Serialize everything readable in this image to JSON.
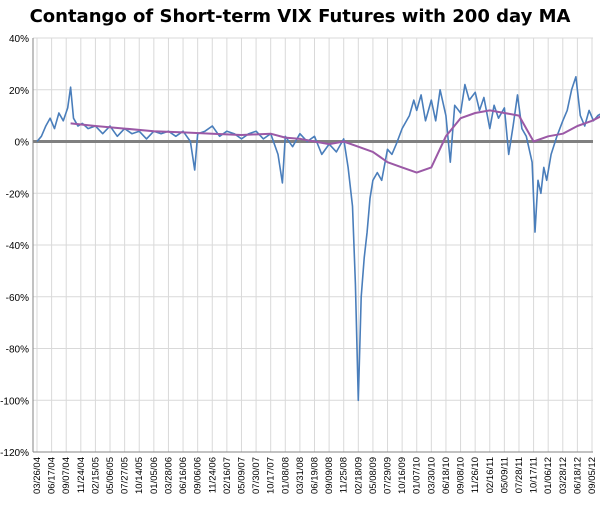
{
  "chart_data": {
    "type": "line",
    "title": "Contango of  Short-term VIX Futures with 200 day MA",
    "xlabel": "",
    "ylabel": "",
    "ylim": [
      -120,
      40
    ],
    "y_ticks": [
      40,
      20,
      0,
      -20,
      -40,
      -60,
      -80,
      -100,
      -120
    ],
    "y_tick_labels": [
      "40%",
      "20%",
      "0%",
      "-20%",
      "-40%",
      "-60%",
      "-80%",
      "-100%",
      "-120%"
    ],
    "x_tick_labels": [
      "03/26/04",
      "06/17/04",
      "09/07/04",
      "11/24/04",
      "02/15/05",
      "05/06/05",
      "07/27/05",
      "10/14/05",
      "01/05/06",
      "03/28/06",
      "06/16/06",
      "09/06/06",
      "11/24/06",
      "02/16/07",
      "05/09/07",
      "07/30/07",
      "10/17/07",
      "01/08/08",
      "03/31/08",
      "06/19/08",
      "09/09/08",
      "11/25/08",
      "02/18/09",
      "05/08/09",
      "07/29/09",
      "10/16/09",
      "01/07/10",
      "03/30/10",
      "06/18/10",
      "09/08/10",
      "11/26/10",
      "02/16/11",
      "05/09/11",
      "07/28/11",
      "10/17/11",
      "01/06/12",
      "03/28/12",
      "06/18/12",
      "09/05/12"
    ],
    "grid": true,
    "zero_line": true,
    "colors": {
      "contango": "#4a7ebb",
      "ma": "#9b59a6",
      "zero": "#808080",
      "grid": "#d9d9d9"
    },
    "series": [
      {
        "name": "Contango",
        "key": "contango",
        "points": [
          [
            0,
            0
          ],
          [
            0.3,
            2
          ],
          [
            0.6,
            6
          ],
          [
            0.9,
            9
          ],
          [
            1.2,
            5
          ],
          [
            1.5,
            11
          ],
          [
            1.8,
            8
          ],
          [
            2.1,
            13
          ],
          [
            2.3,
            21
          ],
          [
            2.5,
            9
          ],
          [
            2.8,
            6
          ],
          [
            3.1,
            7
          ],
          [
            3.5,
            5
          ],
          [
            4,
            6
          ],
          [
            4.5,
            3
          ],
          [
            5,
            6
          ],
          [
            5.5,
            2
          ],
          [
            6,
            5
          ],
          [
            6.5,
            3
          ],
          [
            7,
            4
          ],
          [
            7.5,
            1
          ],
          [
            8,
            4
          ],
          [
            8.5,
            3
          ],
          [
            9,
            4
          ],
          [
            9.5,
            2
          ],
          [
            10,
            4
          ],
          [
            10.5,
            0
          ],
          [
            10.8,
            -11
          ],
          [
            11,
            3
          ],
          [
            11.5,
            4
          ],
          [
            12,
            6
          ],
          [
            12.5,
            2
          ],
          [
            13,
            4
          ],
          [
            13.5,
            3
          ],
          [
            14,
            1
          ],
          [
            14.5,
            3
          ],
          [
            15,
            4
          ],
          [
            15.5,
            1
          ],
          [
            16,
            3
          ],
          [
            16.5,
            -5
          ],
          [
            16.8,
            -16
          ],
          [
            17,
            2
          ],
          [
            17.5,
            -2
          ],
          [
            18,
            3
          ],
          [
            18.5,
            0
          ],
          [
            19,
            2
          ],
          [
            19.5,
            -5
          ],
          [
            20,
            -1
          ],
          [
            20.5,
            -4
          ],
          [
            21,
            1
          ],
          [
            21.3,
            -10
          ],
          [
            21.6,
            -25
          ],
          [
            21.8,
            -55
          ],
          [
            22,
            -100
          ],
          [
            22.2,
            -60
          ],
          [
            22.4,
            -45
          ],
          [
            22.6,
            -35
          ],
          [
            22.8,
            -22
          ],
          [
            23,
            -15
          ],
          [
            23.3,
            -12
          ],
          [
            23.6,
            -15
          ],
          [
            24,
            -3
          ],
          [
            24.3,
            -5
          ],
          [
            24.6,
            -1
          ],
          [
            25,
            5
          ],
          [
            25.5,
            10
          ],
          [
            25.8,
            16
          ],
          [
            26,
            12
          ],
          [
            26.3,
            18
          ],
          [
            26.6,
            8
          ],
          [
            27,
            16
          ],
          [
            27.3,
            8
          ],
          [
            27.6,
            20
          ],
          [
            28,
            10
          ],
          [
            28.3,
            -8
          ],
          [
            28.6,
            14
          ],
          [
            29,
            11
          ],
          [
            29.3,
            22
          ],
          [
            29.6,
            16
          ],
          [
            30,
            19
          ],
          [
            30.3,
            12
          ],
          [
            30.6,
            17
          ],
          [
            31,
            5
          ],
          [
            31.3,
            14
          ],
          [
            31.6,
            9
          ],
          [
            32,
            13
          ],
          [
            32.3,
            -5
          ],
          [
            32.6,
            6
          ],
          [
            32.9,
            18
          ],
          [
            33.2,
            5
          ],
          [
            33.5,
            2
          ],
          [
            33.9,
            -8
          ],
          [
            34.1,
            -35
          ],
          [
            34.3,
            -15
          ],
          [
            34.5,
            -20
          ],
          [
            34.7,
            -10
          ],
          [
            34.9,
            -15
          ],
          [
            35.2,
            -5
          ],
          [
            35.6,
            2
          ],
          [
            36,
            8
          ],
          [
            36.3,
            12
          ],
          [
            36.6,
            20
          ],
          [
            36.9,
            25
          ],
          [
            37.2,
            10
          ],
          [
            37.5,
            6
          ],
          [
            37.8,
            12
          ],
          [
            38.1,
            8
          ],
          [
            38.4,
            10
          ],
          [
            38.7,
            11
          ]
        ]
      },
      {
        "name": "200 day MA",
        "key": "ma",
        "points": [
          [
            2.3,
            7
          ],
          [
            4,
            6
          ],
          [
            6,
            5
          ],
          [
            8,
            4
          ],
          [
            10,
            3.5
          ],
          [
            12,
            3
          ],
          [
            14,
            2.5
          ],
          [
            16,
            3
          ],
          [
            17,
            1.5
          ],
          [
            18,
            1
          ],
          [
            19,
            0
          ],
          [
            20,
            -1
          ],
          [
            21,
            0
          ],
          [
            22,
            -2
          ],
          [
            23,
            -4
          ],
          [
            23.5,
            -6
          ],
          [
            24,
            -8
          ],
          [
            25,
            -10
          ],
          [
            26,
            -12
          ],
          [
            27,
            -10
          ],
          [
            28,
            2
          ],
          [
            29,
            9
          ],
          [
            30,
            11
          ],
          [
            31,
            12
          ],
          [
            32,
            11
          ],
          [
            33,
            10
          ],
          [
            33.5,
            5
          ],
          [
            34,
            0
          ],
          [
            35,
            2
          ],
          [
            36,
            3
          ],
          [
            37,
            6
          ],
          [
            38,
            8
          ],
          [
            38.7,
            10
          ]
        ]
      }
    ]
  }
}
